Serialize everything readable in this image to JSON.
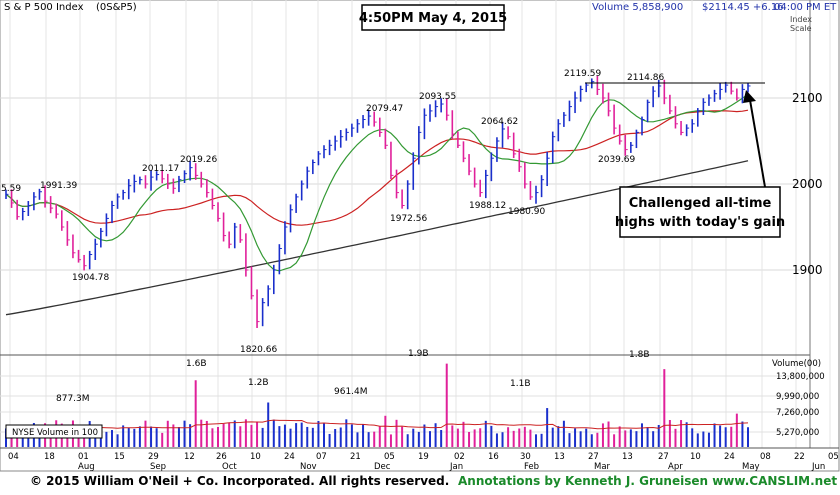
{
  "header": {
    "index_name": "S & P 500 Index",
    "symbol": "(0S&P5)",
    "timestamp": "4:50PM May 4, 2015",
    "volume_text": "Volume 5,858,900",
    "price_text": "$2114.45 +6.16",
    "time_text": "04:00 PM ET",
    "scale_label_1": "Index",
    "scale_label_2": "Scale"
  },
  "volume_panel": {
    "legend_box": "NYSE Volume in 100",
    "title": "Volume(00)",
    "ticks": [
      "13,800,000",
      "9,990,000",
      "7,260,000",
      "5,270,000"
    ]
  },
  "annotation_text": [
    "Challenged all-time",
    "highs with today's gain"
  ],
  "footer": {
    "left": "© 2015  William O'Neil + Co. Incorporated. All rights reserved.",
    "right": "Annotations by Kenneth J. Gruneisen www.CANSLIM.net"
  },
  "colors": {
    "up": "#1a2fcc",
    "down": "#e0209a",
    "ma_short": "#339933",
    "ma_mid": "#cc2222",
    "ma_long": "#333333",
    "volume_ma": "#cc2222",
    "header_blue": "#2233aa"
  },
  "chart_data": {
    "type": "candlestick",
    "price_axis": {
      "ticks": [
        1900,
        2000,
        2100
      ],
      "range": [
        1800,
        2140
      ]
    },
    "price_labels": [
      {
        "text": "5.59",
        "x": "Apr 2014",
        "y": 1990
      },
      {
        "text": "1991.39",
        "x": "Jul 23 2014",
        "y": 1991.39
      },
      {
        "text": "1904.78",
        "x": "Aug 7 2014",
        "y": 1904.78
      },
      {
        "text": "2011.17",
        "x": "Sep 1 2014",
        "y": 2011.17
      },
      {
        "text": "2019.26",
        "x": "Sep 18 2014",
        "y": 2019.26
      },
      {
        "text": "1820.66",
        "x": "Oct 15 2014",
        "y": 1820.66
      },
      {
        "text": "2079.47",
        "x": "Dec 5 2014",
        "y": 2079.47
      },
      {
        "text": "1972.56",
        "x": "Dec 16 2014",
        "y": 1972.56
      },
      {
        "text": "2093.55",
        "x": "Dec 29 2014",
        "y": 2093.55
      },
      {
        "text": "2064.62",
        "x": "Jan 22 2015",
        "y": 2064.62
      },
      {
        "text": "1988.12",
        "x": "Jan 15 2015",
        "y": 1988.12
      },
      {
        "text": "1980.90",
        "x": "Feb 2 2015",
        "y": 1980.9
      },
      {
        "text": "2119.59",
        "x": "Feb 25 2015",
        "y": 2119.59
      },
      {
        "text": "2114.86",
        "x": "Mar 20 2015",
        "y": 2114.86
      },
      {
        "text": "2039.69",
        "x": "Mar 11 2015",
        "y": 2039.69
      }
    ],
    "x_ticks": [
      "04",
      "18",
      "01",
      "15",
      "29",
      "12",
      "26",
      "10",
      "24",
      "07",
      "21",
      "05",
      "19",
      "02",
      "16",
      "30",
      "13",
      "27",
      "13",
      "27",
      "10",
      "24",
      "08",
      "22",
      "05"
    ],
    "month_labels": [
      "Aug",
      "Sep",
      "Oct",
      "Nov",
      "Dec",
      "Jan",
      "Feb",
      "Mar",
      "Apr",
      "May",
      "Jun"
    ],
    "volume_labels": [
      {
        "text": "877.3M",
        "value": 877.3
      },
      {
        "text": "1.6B",
        "value": 1600
      },
      {
        "text": "1.2B",
        "value": 1200
      },
      {
        "text": "961.4M",
        "value": 961.4
      },
      {
        "text": "1.9B",
        "value": 1900
      },
      {
        "text": "1.1B",
        "value": 1100
      },
      {
        "text": "1.8B",
        "value": 1800
      }
    ],
    "closes": [
      1988,
      1978,
      1962,
      1968,
      1975,
      1985,
      1991,
      1980,
      1972,
      1965,
      1950,
      1935,
      1920,
      1912,
      1905,
      1918,
      1930,
      1945,
      1960,
      1975,
      1985,
      1990,
      1998,
      2003,
      2005,
      2000,
      2008,
      2011,
      2006,
      2000,
      1995,
      2005,
      2012,
      2019,
      2010,
      2000,
      1990,
      1975,
      1960,
      1940,
      1930,
      1950,
      1935,
      1900,
      1870,
      1840,
      1862,
      1878,
      1900,
      1925,
      1950,
      1970,
      1985,
      2000,
      2015,
      2025,
      2035,
      2040,
      2045,
      2050,
      2055,
      2060,
      2065,
      2070,
      2075,
      2079,
      2072,
      2060,
      2045,
      2010,
      1990,
      1975,
      2000,
      2030,
      2060,
      2080,
      2085,
      2090,
      2093,
      2080,
      2058,
      2045,
      2030,
      2015,
      2000,
      1990,
      2010,
      2030,
      2050,
      2064,
      2055,
      2035,
      2020,
      2000,
      1985,
      1990,
      2005,
      2030,
      2055,
      2070,
      2080,
      2090,
      2100,
      2110,
      2115,
      2119,
      2110,
      2100,
      2085,
      2065,
      2050,
      2040,
      2045,
      2060,
      2075,
      2095,
      2108,
      2114,
      2100,
      2085,
      2070,
      2060,
      2065,
      2070,
      2085,
      2095,
      2100,
      2105,
      2110,
      2115,
      2108,
      2100,
      2110,
      2114
    ]
  }
}
